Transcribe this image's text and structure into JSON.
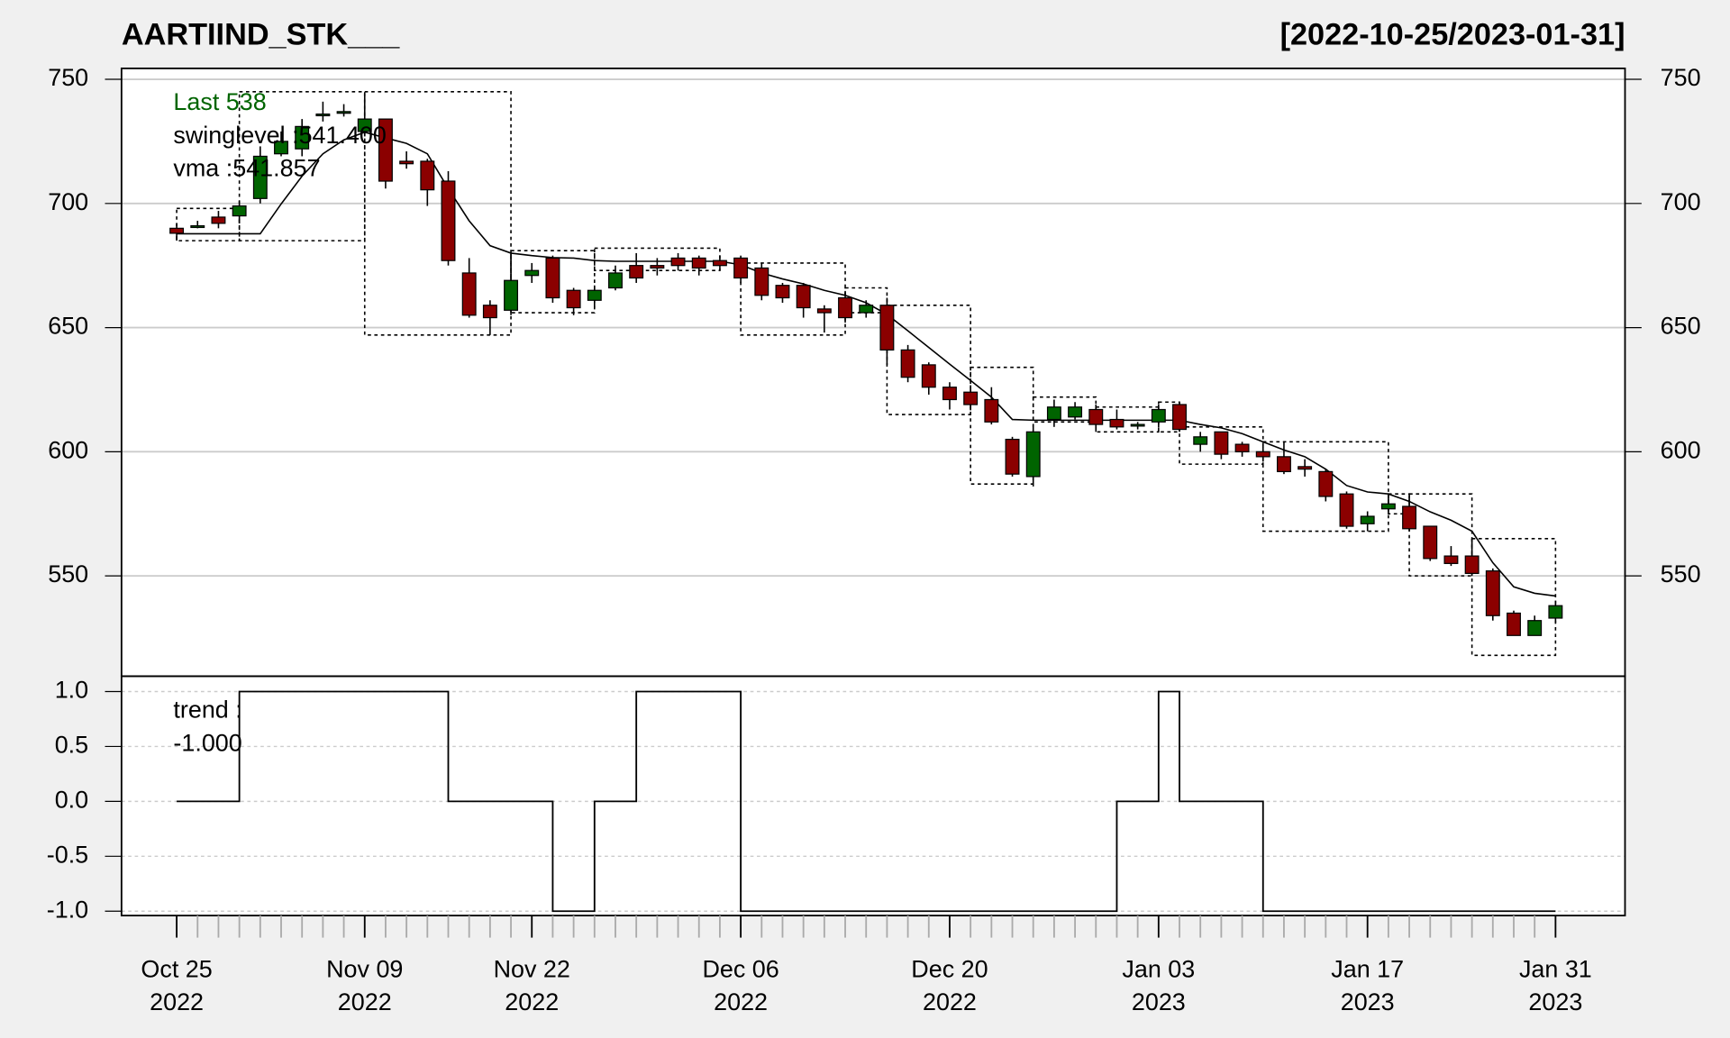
{
  "chart_data": [
    {
      "type": "candlestick",
      "title": "AARTIIND_STK___",
      "subtitle": "[2022-10-25/2023-01-31]",
      "categories": [
        [
          "Oct 25",
          "2022"
        ],
        null,
        null,
        null,
        null,
        null,
        null,
        null,
        null,
        [
          "Nov 09",
          "2022"
        ],
        null,
        null,
        null,
        null,
        null,
        null,
        null,
        [
          "Nov 22",
          "2022"
        ],
        null,
        null,
        null,
        null,
        null,
        null,
        null,
        null,
        null,
        [
          "Dec 06",
          "2022"
        ],
        null,
        null,
        null,
        null,
        null,
        null,
        null,
        null,
        null,
        [
          "Dec 20",
          "2022"
        ],
        null,
        null,
        null,
        null,
        null,
        null,
        null,
        null,
        null,
        [
          "Jan 03",
          "2023"
        ],
        null,
        null,
        null,
        null,
        null,
        null,
        null,
        null,
        null,
        [
          "Jan 17",
          "2023"
        ],
        null,
        null,
        null,
        null,
        null,
        null,
        null,
        null,
        [
          "Jan 31",
          "2023"
        ]
      ],
      "open": [
        690,
        691,
        694.5,
        695,
        702,
        720,
        722,
        736,
        737,
        729,
        734,
        717,
        717,
        709,
        672,
        659,
        657,
        671,
        678,
        665,
        661,
        666,
        675,
        675,
        678,
        678,
        677,
        678,
        674,
        667,
        667,
        657.5,
        662,
        656,
        659,
        641,
        635,
        626,
        624,
        621,
        605,
        590,
        613,
        614,
        617,
        613,
        611,
        612,
        619,
        603,
        608,
        603,
        600,
        598,
        594,
        592,
        583,
        571,
        577,
        578,
        570,
        558,
        558,
        552,
        535,
        526,
        533
      ],
      "high": [
        692,
        693,
        697,
        701,
        723,
        729,
        734,
        741,
        740,
        744,
        734,
        721,
        718,
        713,
        678,
        661,
        680,
        676,
        679,
        666,
        667,
        675,
        680,
        678,
        680,
        679,
        679,
        679,
        676,
        668,
        668,
        659,
        664,
        661,
        662,
        643,
        636,
        628,
        625,
        626,
        606,
        611,
        621,
        620,
        619,
        617,
        612,
        619,
        620,
        608,
        608,
        604,
        602,
        604,
        597,
        593,
        584,
        576,
        583,
        582,
        570,
        562,
        565,
        553,
        536,
        534,
        540
      ],
      "low": [
        685,
        690,
        690,
        692,
        700,
        719,
        719,
        733,
        735,
        727,
        706,
        714,
        699,
        675,
        654,
        647,
        655,
        668,
        660,
        655,
        658,
        665,
        668,
        671,
        673,
        671,
        673,
        668,
        661,
        660,
        654,
        648,
        652,
        654,
        635,
        628,
        623,
        617,
        617,
        611,
        590,
        586,
        610,
        613,
        608,
        609,
        609,
        611,
        608,
        600,
        597,
        598,
        596,
        591,
        590,
        580,
        569,
        568,
        575,
        568,
        556,
        554,
        550,
        532,
        526,
        526,
        531
      ],
      "close": [
        688,
        691,
        692,
        699,
        719,
        725,
        731,
        736,
        737,
        734,
        709,
        716,
        705.5,
        677,
        655,
        654,
        669,
        673,
        662,
        658,
        665,
        672,
        670,
        674,
        675,
        674,
        675,
        670,
        663,
        662,
        658,
        656,
        654,
        659,
        641,
        630,
        626,
        621,
        619,
        612,
        591,
        608,
        618,
        618,
        611,
        610,
        611,
        617,
        609,
        606,
        599,
        600,
        598,
        592,
        593,
        582,
        570,
        574,
        579,
        569,
        557,
        555,
        551,
        534,
        526,
        532,
        538
      ],
      "up_color": "#006400",
      "down_color": "#8b0000",
      "vma_values": [
        687.8,
        687.8,
        687.8,
        687.8,
        687.8,
        699.8,
        711,
        720,
        725.6,
        728.7,
        726.4,
        724.2,
        720,
        706,
        693,
        683,
        680,
        679,
        678.2,
        678,
        677,
        676.7,
        676.7,
        676.7,
        676.7,
        676.7,
        676.7,
        675.3,
        672,
        669.6,
        667.6,
        665,
        663,
        660,
        655.3,
        648.7,
        642,
        635.3,
        628.7,
        622,
        613,
        612.7,
        612.7,
        612.7,
        612.7,
        612.7,
        612.7,
        612.7,
        612.7,
        611,
        609.6,
        607.3,
        604,
        600.7,
        598,
        593,
        586.4,
        583.8,
        583,
        580,
        575.8,
        572.4,
        568,
        555.3,
        545.6,
        543,
        541.9
      ],
      "swing_boxes": [
        {
          "start": 0,
          "end": 3,
          "high": 698,
          "low": 685
        },
        {
          "start": 3,
          "end": 9,
          "high": 745,
          "low": 685
        },
        {
          "start": 9,
          "end": 16,
          "high": 745,
          "low": 647
        },
        {
          "start": 16,
          "end": 20,
          "high": 681,
          "low": 656
        },
        {
          "start": 20,
          "end": 26,
          "high": 682,
          "low": 673
        },
        {
          "start": 27,
          "end": 32,
          "high": 676,
          "low": 647
        },
        {
          "start": 32,
          "end": 34,
          "high": 666,
          "low": 656
        },
        {
          "start": 34,
          "end": 38,
          "high": 659,
          "low": 615
        },
        {
          "start": 38,
          "end": 41,
          "high": 634,
          "low": 587
        },
        {
          "start": 41,
          "end": 44,
          "high": 622,
          "low": 612
        },
        {
          "start": 44,
          "end": 47,
          "high": 618,
          "low": 608
        },
        {
          "start": 47,
          "end": 48,
          "high": 620,
          "low": 608
        },
        {
          "start": 48,
          "end": 52,
          "high": 610,
          "low": 595
        },
        {
          "start": 52,
          "end": 58,
          "high": 604,
          "low": 568
        },
        {
          "start": 58,
          "end": 59,
          "high": 583,
          "low": 575
        },
        {
          "start": 59,
          "end": 62,
          "high": 583,
          "low": 550
        },
        {
          "start": 62,
          "end": 66,
          "high": 565,
          "low": 518
        }
      ],
      "legend_last": "Last 538",
      "legend_last_color": "#006400",
      "legend_swinglevel": "swinglevel :541.400",
      "legend_vma": "vma :541.857",
      "ylim": [
        509.6,
        754.4
      ],
      "yticks": [
        550,
        600,
        650,
        700,
        750
      ],
      "grid": true
    },
    {
      "type": "step",
      "label": "trend :",
      "last_value_label": "-1.000",
      "values": [
        0,
        0,
        0,
        1,
        1,
        1,
        1,
        1,
        1,
        1,
        1,
        1,
        1,
        0,
        0,
        0,
        0,
        0,
        -1,
        -1,
        0,
        0,
        1,
        1,
        1,
        1,
        1,
        -1,
        -1,
        -1,
        -1,
        -1,
        -1,
        -1,
        -1,
        -1,
        -1,
        -1,
        -1,
        -1,
        -1,
        -1,
        -1,
        -1,
        -1,
        0,
        0,
        1,
        0,
        0,
        0,
        0,
        -1,
        -1,
        -1,
        -1,
        -1,
        -1,
        -1,
        -1,
        -1,
        -1,
        -1,
        -1,
        -1,
        -1,
        -1
      ],
      "ylim": [
        -1.04,
        1.14
      ],
      "yticks": [
        {
          "value": -1,
          "label": "-1.0"
        },
        -0.5,
        {
          "value": 0,
          "label": "0.0"
        },
        0.5,
        {
          "value": 1,
          "label": "1.0"
        }
      ],
      "grid": true
    }
  ]
}
